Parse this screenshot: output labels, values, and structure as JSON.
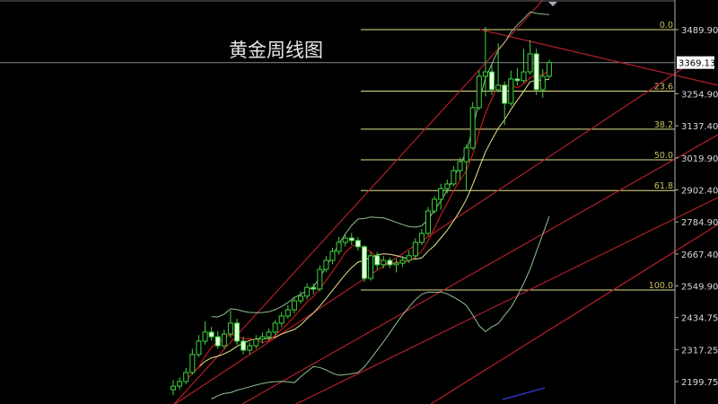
{
  "title": "黄金周线图",
  "chart_data": {
    "type": "candlestick",
    "title": "黄金周线图",
    "y_axis": {
      "ticks": [
        "3489.90",
        "3254.90",
        "3137.40",
        "3019.90",
        "2902.40",
        "2784.90",
        "2667.40",
        "2549.90",
        "2434.75",
        "2317.25",
        "2199.75"
      ],
      "range": [
        2140,
        3620
      ]
    },
    "current_price": "3369.13",
    "fibonacci": [
      {
        "label": "0.0",
        "price": 3489.9
      },
      {
        "label": "23.6",
        "price": 3264.6
      },
      {
        "label": "38.2",
        "price": 3125.0
      },
      {
        "label": "50.0",
        "price": 3012.7
      },
      {
        "label": "61.8",
        "price": 2900.0
      },
      {
        "label": "100.0",
        "price": 2535.5
      }
    ],
    "candles": [
      [
        2170,
        2205,
        2150,
        2183
      ],
      [
        2183,
        2215,
        2170,
        2200
      ],
      [
        2200,
        2250,
        2190,
        2233
      ],
      [
        2233,
        2320,
        2225,
        2299
      ],
      [
        2299,
        2370,
        2290,
        2348
      ],
      [
        2348,
        2420,
        2335,
        2381
      ],
      [
        2381,
        2400,
        2350,
        2364
      ],
      [
        2364,
        2385,
        2320,
        2331
      ],
      [
        2331,
        2390,
        2320,
        2374
      ],
      [
        2374,
        2460,
        2360,
        2414
      ],
      [
        2414,
        2430,
        2335,
        2348
      ],
      [
        2348,
        2365,
        2300,
        2315
      ],
      [
        2315,
        2345,
        2300,
        2331
      ],
      [
        2331,
        2370,
        2320,
        2355
      ],
      [
        2355,
        2380,
        2340,
        2364
      ],
      [
        2364,
        2395,
        2350,
        2381
      ],
      [
        2381,
        2425,
        2370,
        2414
      ],
      [
        2414,
        2455,
        2400,
        2440
      ],
      [
        2440,
        2480,
        2430,
        2463
      ],
      [
        2463,
        2510,
        2450,
        2496
      ],
      [
        2496,
        2530,
        2485,
        2513
      ],
      [
        2513,
        2560,
        2500,
        2545
      ],
      [
        2545,
        2560,
        2520,
        2539
      ],
      [
        2539,
        2625,
        2530,
        2611
      ],
      [
        2611,
        2660,
        2600,
        2644
      ],
      [
        2644,
        2690,
        2630,
        2677
      ],
      [
        2677,
        2730,
        2665,
        2710
      ],
      [
        2710,
        2740,
        2695,
        2726
      ],
      [
        2726,
        2745,
        2700,
        2717
      ],
      [
        2717,
        2730,
        2680,
        2694
      ],
      [
        2694,
        2700,
        2565,
        2578
      ],
      [
        2578,
        2675,
        2570,
        2661
      ],
      [
        2661,
        2675,
        2610,
        2628
      ],
      [
        2628,
        2660,
        2615,
        2644
      ],
      [
        2644,
        2655,
        2615,
        2628
      ],
      [
        2628,
        2650,
        2600,
        2634
      ],
      [
        2634,
        2660,
        2620,
        2644
      ],
      [
        2644,
        2680,
        2635,
        2661
      ],
      [
        2661,
        2725,
        2650,
        2710
      ],
      [
        2710,
        2760,
        2700,
        2743
      ],
      [
        2743,
        2840,
        2735,
        2825
      ],
      [
        2825,
        2880,
        2815,
        2868
      ],
      [
        2868,
        2925,
        2830,
        2907
      ],
      [
        2907,
        2940,
        2890,
        2924
      ],
      [
        2924,
        2990,
        2915,
        2973
      ],
      [
        2973,
        3020,
        2940,
        3006
      ],
      [
        3006,
        3070,
        2900,
        3056
      ],
      [
        3056,
        3225,
        3050,
        3204
      ],
      [
        3204,
        3340,
        3195,
        3319
      ],
      [
        3319,
        3500,
        3245,
        3335
      ],
      [
        3335,
        3360,
        3250,
        3270
      ],
      [
        3270,
        3440,
        3260,
        3286
      ],
      [
        3286,
        3300,
        3140,
        3220
      ],
      [
        3220,
        3340,
        3210,
        3309
      ],
      [
        3309,
        3350,
        3285,
        3303
      ],
      [
        3303,
        3420,
        3295,
        3335
      ],
      [
        3335,
        3452,
        3325,
        3401
      ],
      [
        3401,
        3420,
        3250,
        3270
      ],
      [
        3270,
        3345,
        3240,
        3319
      ],
      [
        3319,
        3380,
        3310,
        3369.13
      ]
    ]
  },
  "colors": {
    "background": "#000000",
    "candle": "#3fd23f",
    "fib": "#e2e08a",
    "trend": "#b0202a",
    "ma_short": "#e01c1c",
    "ma_mid": "#e6e68a",
    "band": "#8fc08f",
    "axis": "#b0b0b0"
  }
}
